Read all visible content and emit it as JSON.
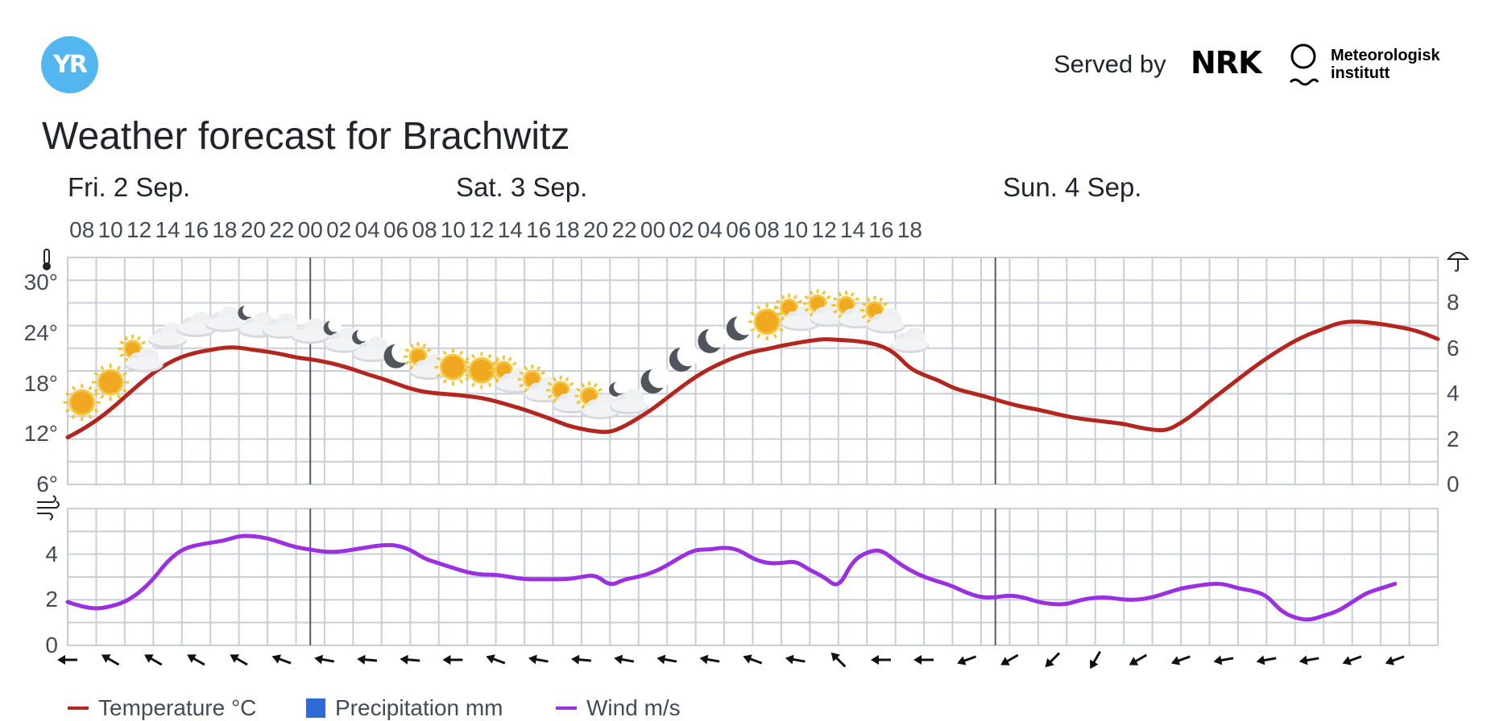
{
  "header": {
    "logo_text": "YR",
    "served_by": "Served by",
    "nrk": "NRK",
    "met_line1": "Meteorologisk",
    "met_line2": "institutt"
  },
  "page_title": "Weather forecast for Brachwitz",
  "days": [
    "Fri. 2 Sep.",
    "Sat. 3 Sep.",
    "Sun. 4 Sep."
  ],
  "hour_labels": [
    "08",
    "10",
    "12",
    "14",
    "16",
    "18",
    "20",
    "22",
    "00",
    "02",
    "04",
    "06",
    "08",
    "10",
    "12",
    "14",
    "16",
    "18",
    "20",
    "22",
    "00",
    "02",
    "04",
    "06",
    "08",
    "10",
    "12",
    "14",
    "16",
    "18"
  ],
  "legend": [
    {
      "label": "Temperature °C",
      "color": "#b3261e",
      "kind": "line"
    },
    {
      "label": "Precipitation mm",
      "color": "#2f6ad6",
      "kind": "box"
    },
    {
      "label": "Wind m/s",
      "color": "#9b30e0",
      "kind": "line"
    }
  ],
  "colors": {
    "grid": "#c9ced6",
    "day_divider": "#555b63",
    "temperature": "#b3261e",
    "wind": "#9b30e0"
  },
  "chart_data": [
    {
      "type": "line",
      "title": "",
      "x_unit": "hour",
      "x_start": "2022-09-02 07:00",
      "ylabel": "",
      "ylim": [
        6,
        33
      ],
      "yticks": [
        6,
        12,
        18,
        24,
        30
      ],
      "ytick_labels": [
        "6°",
        "12°",
        "18°",
        "24°",
        "30°"
      ],
      "secondary_axis": {
        "label": "precipitation",
        "ticks": [
          0,
          2,
          4,
          6,
          8
        ]
      },
      "grid": true,
      "series": [
        {
          "name": "Temperature °C",
          "values": [
            11.6,
            12.5,
            13.6,
            14.9,
            16.4,
            17.9,
            19.3,
            20.4,
            21.2,
            21.7,
            22.0,
            22.3,
            22.3,
            22.0,
            21.8,
            21.5,
            21.1,
            20.9,
            20.6,
            20.2,
            19.7,
            19.1,
            18.6,
            18.0,
            17.4,
            17.0,
            16.8,
            16.7,
            16.5,
            16.3,
            15.9,
            15.4,
            14.9,
            14.3,
            13.7,
            13.0,
            12.6,
            12.3,
            12.2,
            12.9,
            13.9,
            15.0,
            16.3,
            17.6,
            18.8,
            19.8,
            20.6,
            21.3,
            21.8,
            22.1,
            22.5,
            22.8,
            23.1,
            23.3,
            23.2,
            23.1,
            22.9,
            22.5,
            21.6,
            19.8,
            19.0,
            18.4,
            17.5,
            17.0,
            16.6,
            16.1,
            15.6,
            15.2,
            14.9,
            14.5,
            14.1,
            13.8,
            13.6,
            13.4,
            13.2,
            12.8,
            12.5,
            12.4,
            13.3,
            14.5,
            15.9,
            17.2,
            18.5,
            19.8,
            21.0,
            22.1,
            23.1,
            23.9,
            24.5,
            25.2,
            25.4,
            25.3,
            25.1,
            24.8,
            24.5,
            24.0,
            23.3
          ]
        }
      ],
      "weather_symbols": [
        "clear-day",
        "clear-day",
        "partly-cloudy-day",
        "cloudy",
        "cloudy",
        "cloudy",
        "partly-cloudy-night",
        "cloudy",
        "cloudy",
        "partly-cloudy-night",
        "partly-cloudy-night",
        "clear-night",
        "partly-cloudy-day",
        "clear-day",
        "clear-day",
        "partly-cloudy-day",
        "partly-cloudy-day",
        "partly-cloudy-day",
        "partly-cloudy-day",
        "partly-cloudy-night",
        "clear-night",
        "clear-night",
        "clear-night",
        "clear-night",
        "clear-day",
        "partly-cloudy-day",
        "partly-cloudy-day",
        "partly-cloudy-day",
        "partly-cloudy-day",
        "cloudy"
      ]
    },
    {
      "type": "line",
      "title": "",
      "x_unit": "hour",
      "x_start": "2022-09-02 07:00",
      "ylabel": "",
      "ylim": [
        0,
        6
      ],
      "yticks": [
        0,
        2,
        4
      ],
      "grid": true,
      "series": [
        {
          "name": "Wind m/s",
          "values": [
            1.9,
            1.7,
            1.6,
            1.7,
            1.9,
            2.3,
            2.9,
            3.7,
            4.2,
            4.4,
            4.5,
            4.6,
            4.8,
            4.8,
            4.7,
            4.5,
            4.3,
            4.2,
            4.1,
            4.1,
            4.2,
            4.3,
            4.4,
            4.4,
            4.2,
            3.8,
            3.6,
            3.4,
            3.2,
            3.1,
            3.1,
            3.0,
            2.9,
            2.9,
            2.9,
            2.9,
            3.0,
            3.1,
            2.6,
            2.9,
            3.0,
            3.2,
            3.5,
            3.9,
            4.2,
            4.2,
            4.3,
            4.2,
            3.8,
            3.6,
            3.6,
            3.7,
            3.3,
            3.0,
            2.5,
            3.7,
            4.1,
            4.2,
            3.7,
            3.3,
            3.0,
            2.8,
            2.6,
            2.3,
            2.1,
            2.1,
            2.2,
            2.1,
            1.9,
            1.8,
            1.8,
            2.0,
            2.1,
            2.1,
            2.0,
            2.0,
            2.1,
            2.3,
            2.5,
            2.6,
            2.7,
            2.7,
            2.5,
            2.4,
            2.2,
            1.5,
            1.2,
            1.1,
            1.3,
            1.5,
            1.9,
            2.3,
            2.5,
            2.7
          ]
        }
      ],
      "wind_direction_deg": [
        90,
        120,
        120,
        120,
        120,
        110,
        100,
        95,
        95,
        90,
        110,
        100,
        95,
        100,
        100,
        100,
        110,
        100,
        135,
        90,
        90,
        70,
        60,
        45,
        30,
        60,
        70,
        80,
        80,
        80,
        70,
        70
      ]
    }
  ]
}
